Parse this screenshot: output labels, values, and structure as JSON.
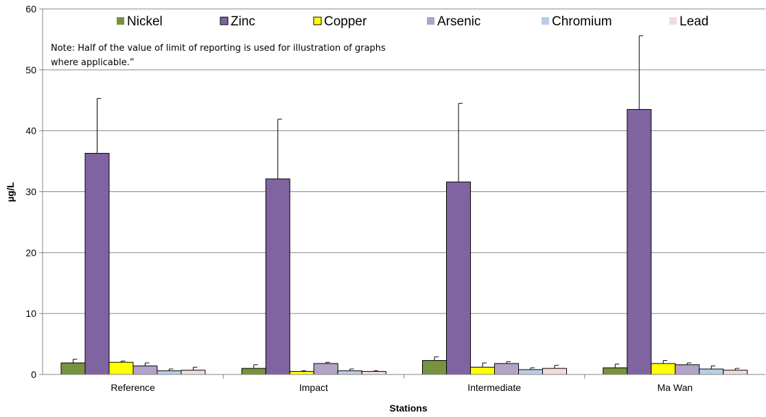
{
  "chart_data": {
    "type": "bar",
    "title": "",
    "xlabel": "Stations",
    "ylabel": "µg/L",
    "ylim": [
      0,
      60
    ],
    "yticks": [
      0,
      10,
      20,
      30,
      40,
      50,
      60
    ],
    "grid": true,
    "legend_position": "top",
    "categories": [
      "Reference",
      "Impact",
      "Intermediate",
      "Ma Wan"
    ],
    "series": [
      {
        "name": "Nickel",
        "color": "#77933c",
        "values": [
          1.9,
          1.0,
          2.3,
          1.1
        ],
        "errors": [
          0.6,
          0.6,
          0.6,
          0.6
        ]
      },
      {
        "name": "Zinc",
        "color": "#8064a2",
        "values": [
          36.3,
          32.1,
          31.6,
          43.5
        ],
        "errors": [
          9.0,
          9.8,
          12.9,
          12.1
        ]
      },
      {
        "name": "Copper",
        "color": "#ffff00",
        "values": [
          2.0,
          0.5,
          1.2,
          1.8
        ],
        "errors": [
          0.2,
          0.1,
          0.7,
          0.5
        ]
      },
      {
        "name": "Arsenic",
        "color": "#b3a2c7",
        "values": [
          1.4,
          1.8,
          1.8,
          1.6
        ],
        "errors": [
          0.5,
          0.2,
          0.3,
          0.3
        ]
      },
      {
        "name": "Chromium",
        "color": "#b9cde5",
        "values": [
          0.6,
          0.6,
          0.8,
          0.9
        ],
        "errors": [
          0.3,
          0.3,
          0.3,
          0.5
        ]
      },
      {
        "name": "Lead",
        "color": "#f2dcdb",
        "values": [
          0.7,
          0.5,
          1.0,
          0.7
        ],
        "errors": [
          0.5,
          0.1,
          0.5,
          0.3
        ]
      }
    ],
    "annotation": {
      "line1": "Note: Half of the value of limit of reporting is used for illustration of graphs",
      "line2": " where applicable.”"
    }
  }
}
